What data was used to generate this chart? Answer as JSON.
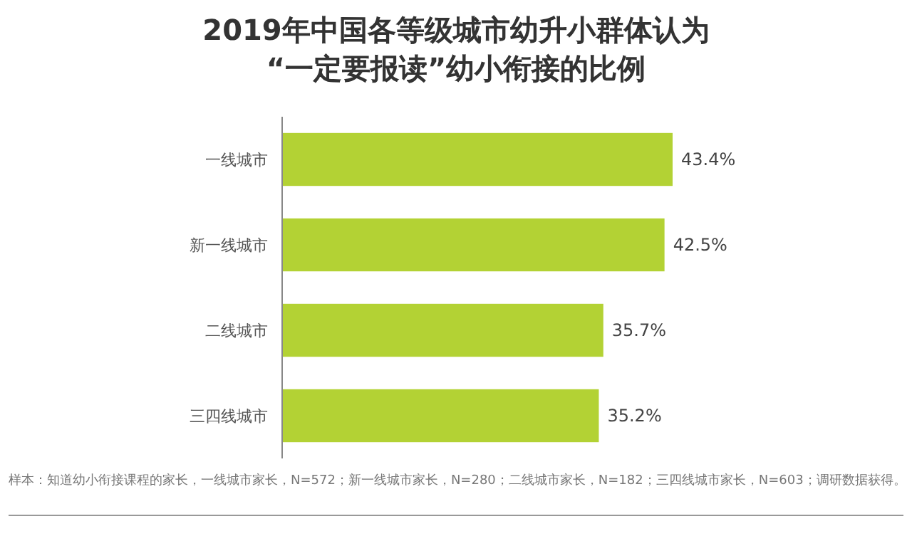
{
  "chart_data": {
    "type": "bar",
    "orientation": "horizontal",
    "title": "2019年中国各等级城市幼升小群体认为\n“一定要报读”幼小衔接的比例",
    "categories": [
      "一线城市",
      "新一线城市",
      "二线城市",
      "三四线城市"
    ],
    "values": [
      43.4,
      42.5,
      35.7,
      35.2
    ],
    "color": "#b3d234",
    "value_labels": [
      "43.4%",
      "42.5%",
      "35.7%",
      "35.2%"
    ],
    "annotations": [
      "样本：知道幼小衔接课程的家长，一线城市家长，N=572；新一线城市家长，N=280；二线城市家长，N=182；三四线城市家长，N=603；调研数据获得。"
    ]
  }
}
